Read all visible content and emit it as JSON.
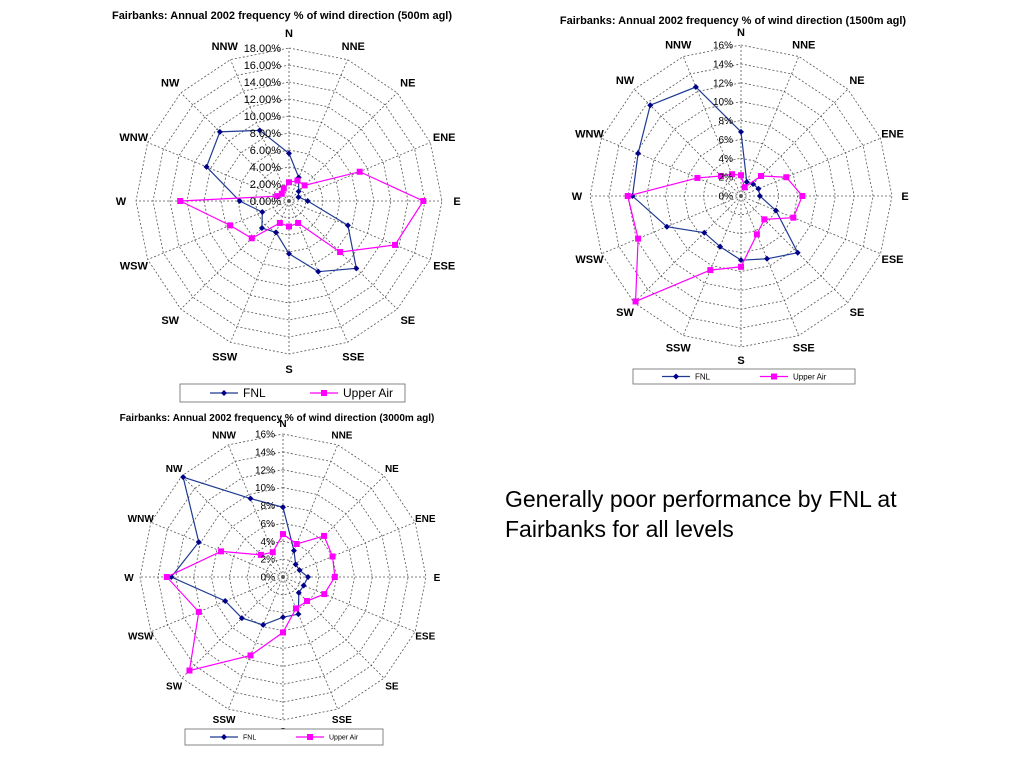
{
  "note": "Generally poor performance by FNL at Fairbanks for all levels",
  "colors": {
    "fnl": "#1f3a93",
    "fnl_marker": "#00008b",
    "upper": "#ff00ff"
  },
  "chart_data": [
    {
      "type": "radar",
      "title": "Fairbanks: Annual 2002 frequency % of wind direction (500m agl)",
      "directions": [
        "N",
        "NNE",
        "NE",
        "ENE",
        "E",
        "ESE",
        "SE",
        "SSE",
        "S",
        "SSW",
        "SW",
        "WSW",
        "W",
        "WNW",
        "NW",
        "NNW"
      ],
      "ticks": [
        "0.00%",
        "2.00%",
        "4.00%",
        "6.00%",
        "8.00%",
        "10.00%",
        "12.00%",
        "14.00%",
        "16.00%",
        "18.00%"
      ],
      "rmax": 18,
      "legend": [
        "FNL",
        "Upper Air"
      ],
      "series": [
        {
          "name": "FNL",
          "values": [
            5.6,
            3.0,
            1.6,
            1.2,
            2.2,
            7.5,
            11.2,
            9.0,
            6.2,
            4.0,
            4.5,
            3.4,
            5.8,
            10.5,
            11.5,
            9.0
          ]
        },
        {
          "name": "Upper Air",
          "values": [
            2.2,
            2.6,
            2.6,
            9.0,
            15.8,
            13.5,
            8.5,
            2.8,
            3.0,
            2.8,
            6.2,
            7.5,
            12.8,
            1.5,
            1.2,
            1.6
          ]
        }
      ]
    },
    {
      "type": "radar",
      "title": "Fairbanks: Annual 2002 frequency % of wind direction (1500m agl)",
      "directions": [
        "N",
        "NNE",
        "NE",
        "ENE",
        "E",
        "ESE",
        "SE",
        "SSE",
        "S",
        "SSW",
        "SW",
        "WSW",
        "W",
        "WNW",
        "NW",
        "NNW"
      ],
      "ticks": [
        "0%",
        "2%",
        "4%",
        "6%",
        "8%",
        "10%",
        "12%",
        "14%",
        "16%"
      ],
      "rmax": 16,
      "legend": [
        "FNL",
        "Upper Air"
      ],
      "series": [
        {
          "name": "FNL",
          "values": [
            6.8,
            1.6,
            1.8,
            2.0,
            2.0,
            4.0,
            8.5,
            7.2,
            6.8,
            5.8,
            5.5,
            8.5,
            11.5,
            11.8,
            13.6,
            12.5
          ]
        },
        {
          "name": "Upper Air",
          "values": [
            2.2,
            1.0,
            3.0,
            5.2,
            6.5,
            6.0,
            3.5,
            4.4,
            7.5,
            8.5,
            15.8,
            11.8,
            12.0,
            5.0,
            3.0,
            2.5
          ]
        }
      ]
    },
    {
      "type": "radar",
      "title": "Fairbanks: Annual 2002 frequency % of wind direction (3000m agl)",
      "directions": [
        "N",
        "NNE",
        "NE",
        "ENE",
        "E",
        "ESE",
        "SE",
        "SSE",
        "S",
        "SSW",
        "SW",
        "WSW",
        "W",
        "WNW",
        "NW",
        "NNW"
      ],
      "ticks": [
        "0%",
        "2%",
        "4%",
        "6%",
        "8%",
        "10%",
        "12%",
        "14%",
        "16%"
      ],
      "rmax": 16,
      "legend": [
        "FNL",
        "Upper Air"
      ],
      "series": [
        {
          "name": "FNL",
          "values": [
            7.8,
            3.2,
            2.0,
            2.0,
            2.8,
            2.5,
            2.5,
            4.5,
            4.5,
            5.8,
            6.5,
            7.0,
            12.5,
            10.2,
            15.8,
            9.5
          ]
        },
        {
          "name": "Upper Air",
          "values": [
            4.8,
            4.0,
            6.5,
            6.0,
            5.8,
            5.0,
            3.8,
            3.8,
            6.2,
            9.5,
            14.8,
            10.2,
            13.0,
            7.5,
            3.5,
            3.0
          ]
        }
      ]
    }
  ]
}
